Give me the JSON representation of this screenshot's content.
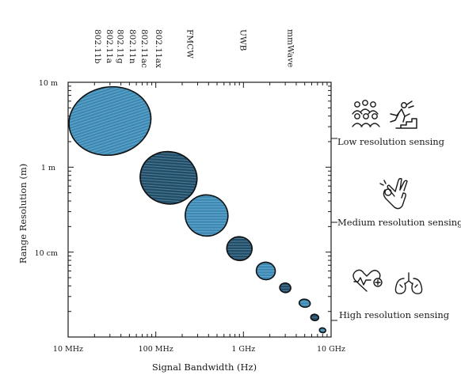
{
  "chart_data": {
    "type": "scatter",
    "title": "",
    "xlabel": "Signal Bandwidth (Hz)",
    "ylabel": "Range Resolution (m)",
    "x_scale": "log",
    "y_scale": "log",
    "xlim_hz": [
      10000000,
      10000000000
    ],
    "ylim_m": [
      0.01,
      10
    ],
    "x_ticks": [
      {
        "value": 10000000,
        "label": "10 MHz"
      },
      {
        "value": 100000000,
        "label": "100 MHz"
      },
      {
        "value": 1000000000,
        "label": "1 GHz"
      },
      {
        "value": 10000000000,
        "label": "10 GHz"
      }
    ],
    "y_ticks": [
      {
        "value": 10,
        "label": "10 m"
      },
      {
        "value": 1,
        "label": "1 m"
      },
      {
        "value": 0.1,
        "label": "10 cm"
      }
    ],
    "technologies": [
      {
        "label": "802.11b",
        "bandwidth_hz": 22000000
      },
      {
        "label": "802.11a",
        "bandwidth_hz": 30000000
      },
      {
        "label": "802.11g",
        "bandwidth_hz": 40000000
      },
      {
        "label": "802.11n",
        "bandwidth_hz": 55000000
      },
      {
        "label": "802.11ac",
        "bandwidth_hz": 75000000
      },
      {
        "label": "802.11ax",
        "bandwidth_hz": 110000000
      },
      {
        "label": "FMCW",
        "bandwidth_hz": 250000000
      },
      {
        "label": "UWB",
        "bandwidth_hz": 1000000000
      },
      {
        "label": "mmWave",
        "bandwidth_hz": 3500000000
      }
    ],
    "points": [
      {
        "bandwidth_hz": 30000000,
        "resolution_m": 3.5,
        "color": "#3b8ab5"
      },
      {
        "bandwidth_hz": 140000000,
        "resolution_m": 0.75,
        "color": "#1f4e6b"
      },
      {
        "bandwidth_hz": 380000000,
        "resolution_m": 0.27,
        "color": "#3b8ab5"
      },
      {
        "bandwidth_hz": 900000000,
        "resolution_m": 0.11,
        "color": "#1f4e6b"
      },
      {
        "bandwidth_hz": 1800000000,
        "resolution_m": 0.06,
        "color": "#3b8ab5"
      },
      {
        "bandwidth_hz": 3000000000,
        "resolution_m": 0.038,
        "color": "#1f4e6b"
      },
      {
        "bandwidth_hz": 5000000000,
        "resolution_m": 0.025,
        "color": "#3b8ab5"
      },
      {
        "bandwidth_hz": 6500000000,
        "resolution_m": 0.017,
        "color": "#1f4e6b"
      },
      {
        "bandwidth_hz": 8000000000,
        "resolution_m": 0.012,
        "color": "#3b8ab5"
      }
    ]
  },
  "bands": [
    {
      "label": "Low resolution sensing",
      "icons": [
        "crowd-icon",
        "fall-detection-icon"
      ]
    },
    {
      "label": "Medium resolution sensing",
      "icons": [
        "hand-gesture-icon"
      ]
    },
    {
      "label": "High resolution sensing",
      "icons": [
        "heartbeat-icon",
        "lungs-icon"
      ]
    }
  ]
}
